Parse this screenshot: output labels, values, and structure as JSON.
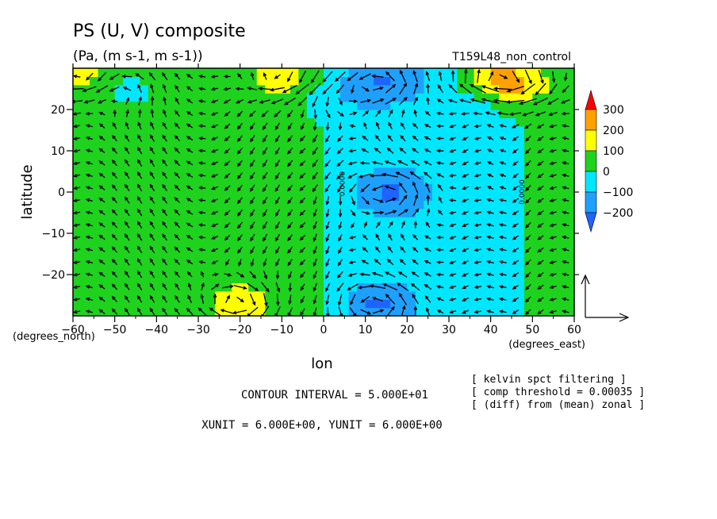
{
  "chart_data": {
    "type": "heatmap",
    "title": "PS (U, V) composite",
    "subtitle": "(Pa, (m s-1, m s-1))",
    "run_label": "T159L48_non_control",
    "xlabel": "lon",
    "ylabel": "latitude",
    "x_unit_label": "(degrees_east)",
    "y_unit_label": "(degrees_north)",
    "xlim": [
      -60,
      60
    ],
    "ylim": [
      -30,
      30
    ],
    "x_ticks": [
      -60,
      -50,
      -40,
      -30,
      -20,
      -10,
      0,
      10,
      20,
      30,
      40,
      50,
      60
    ],
    "y_ticks": [
      -20,
      -10,
      0,
      10,
      20
    ],
    "colorbar": {
      "levels": [
        -300,
        -200,
        -100,
        0,
        100,
        200,
        300
      ],
      "tick_labels": [
        "300",
        "200",
        "100",
        "0",
        "−100",
        "−200"
      ],
      "colors": [
        "#1e64ff",
        "#1ea0ff",
        "#00e6ff",
        "#1ed21e",
        "#ffff00",
        "#ffa000",
        "#ff0000"
      ]
    },
    "contour_labels": [
      "0.0000",
      "0.0000"
    ],
    "field_features": [
      {
        "kind": "low",
        "lon": 16,
        "lat": 0,
        "value": -150
      },
      {
        "kind": "low",
        "lon": 13,
        "lat": -27,
        "value": -150
      },
      {
        "kind": "low",
        "lon": 14,
        "lat": 27,
        "value": -150
      },
      {
        "kind": "low",
        "lon": -48,
        "lat": 25,
        "value": -50
      },
      {
        "kind": "low",
        "lon": 2,
        "lat": 23,
        "value": -60
      },
      {
        "kind": "high",
        "lon": -20,
        "lat": -27,
        "value": 150
      },
      {
        "kind": "high",
        "lon": -10,
        "lat": 28,
        "value": 130
      },
      {
        "kind": "high",
        "lon": 48,
        "lat": 26,
        "value": 140
      },
      {
        "kind": "high",
        "lon": -58,
        "lat": 28,
        "value": 120
      },
      {
        "kind": "high",
        "lon": 40,
        "lat": 28,
        "value": 220
      }
    ],
    "info_lines": [
      "CONTOUR INTERVAL = 5.000E+01",
      "XUNIT = 6.000E+00, YUNIT = 6.000E+00"
    ],
    "notes": [
      "[ kelvin spct filtering ]",
      "[ comp threshold = 0.00035 ]",
      "[ (diff) from (mean) zonal ]"
    ]
  }
}
